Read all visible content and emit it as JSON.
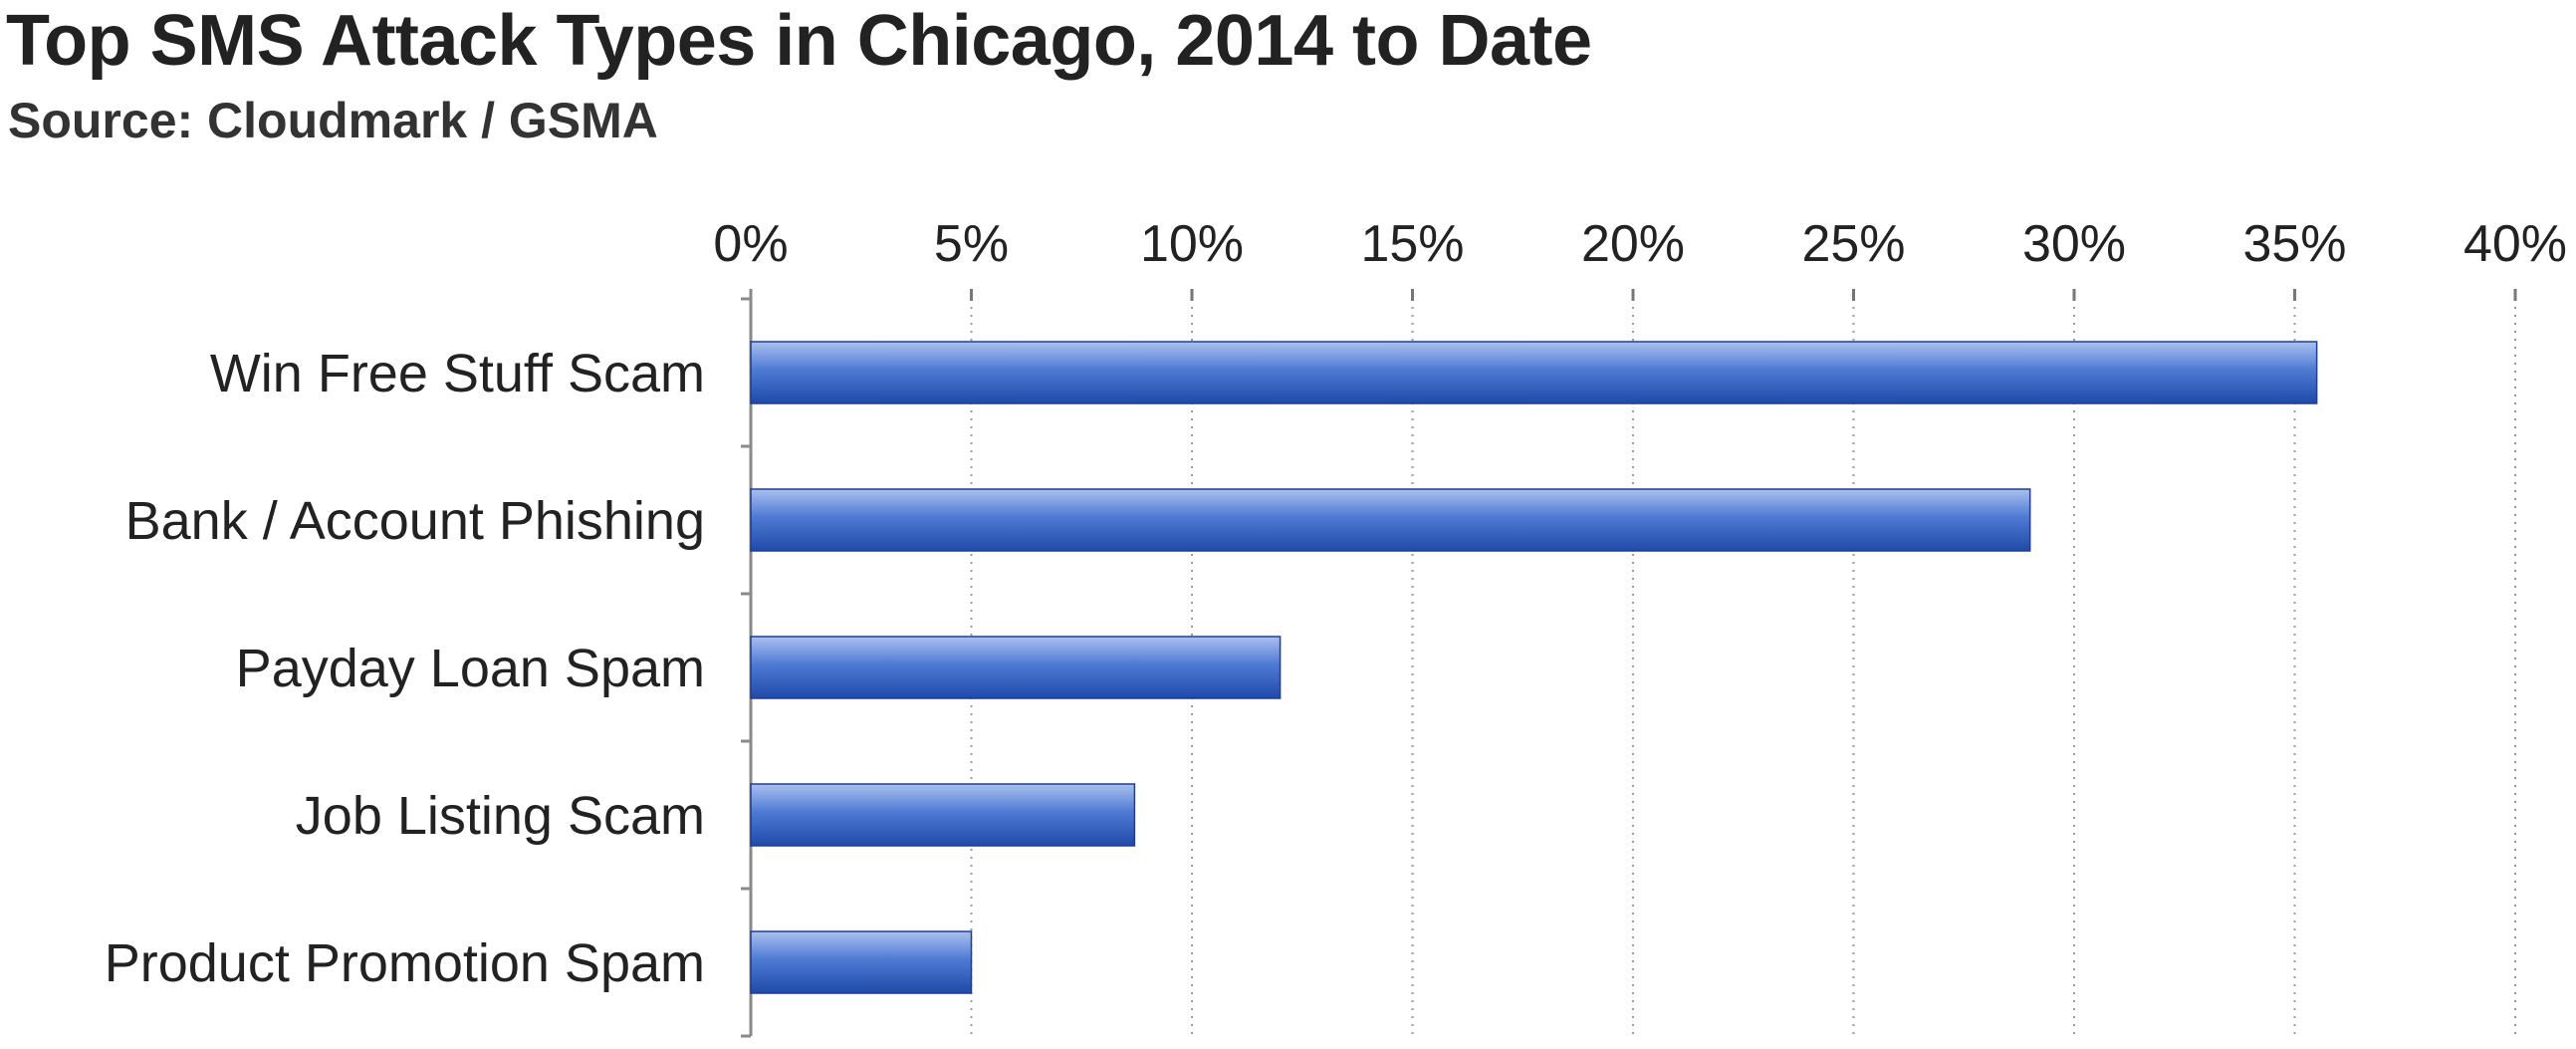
{
  "chart_data": {
    "type": "bar",
    "orientation": "horizontal",
    "title": "Top SMS Attack Types in Chicago, 2014 to Date",
    "subtitle": "Source: Cloudmark / GSMA",
    "categories": [
      "Win Free Stuff Scam",
      "Bank / Account Phishing",
      "Payday Loan Spam",
      "Job Listing Scam",
      "Product Promotion Spam"
    ],
    "values": [
      35.5,
      29,
      12,
      8.7,
      5
    ],
    "xlim": [
      0,
      40
    ],
    "xticks": [
      "0%",
      "5%",
      "10%",
      "15%",
      "20%",
      "25%",
      "30%",
      "35%",
      "40%"
    ],
    "x_axis_position": "top",
    "grid": "vertical dotted",
    "bar_color": "#2f5fc0"
  }
}
